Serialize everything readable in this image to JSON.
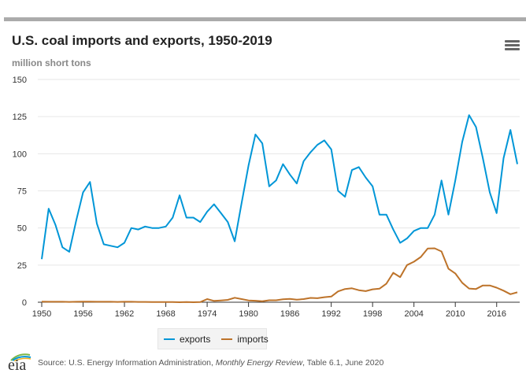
{
  "header": {
    "title": "U.S. coal imports and exports, 1950-2019",
    "subtitle": "million short tons",
    "menu_icon": "hamburger-menu-icon"
  },
  "footer": {
    "logo_text": "eia",
    "source_prefix": "Source: U.S. Energy Information Administration, ",
    "source_italic": "Monthly Energy Review",
    "source_suffix": ", Table 6.1, June 2020"
  },
  "colors": {
    "exports": "#0096d7",
    "imports": "#bd732a",
    "grid": "#e6e6e6",
    "axis": "#333333"
  },
  "chart_data": {
    "type": "line",
    "title": "U.S. coal imports and exports, 1950-2019",
    "ylabel": "million short tons",
    "xlabel": "",
    "ylim": [
      0,
      150
    ],
    "xlim": [
      1950,
      2019
    ],
    "yticks": [
      "0",
      "25",
      "50",
      "75",
      "100",
      "125",
      "150"
    ],
    "xticks": [
      "1950",
      "1956",
      "1962",
      "1968",
      "1974",
      "1980",
      "1986",
      "1992",
      "1998",
      "2004",
      "2010",
      "2016"
    ],
    "grid": true,
    "legend": {
      "position": "bottom-center",
      "entries": [
        "exports",
        "imports"
      ]
    },
    "x": [
      1950,
      1951,
      1952,
      1953,
      1954,
      1955,
      1956,
      1957,
      1958,
      1959,
      1960,
      1961,
      1962,
      1963,
      1964,
      1965,
      1966,
      1967,
      1968,
      1969,
      1970,
      1971,
      1972,
      1973,
      1974,
      1975,
      1976,
      1977,
      1978,
      1979,
      1980,
      1981,
      1982,
      1983,
      1984,
      1985,
      1986,
      1987,
      1988,
      1989,
      1990,
      1991,
      1992,
      1993,
      1994,
      1995,
      1996,
      1997,
      1998,
      1999,
      2000,
      2001,
      2002,
      2003,
      2004,
      2005,
      2006,
      2007,
      2008,
      2009,
      2010,
      2011,
      2012,
      2013,
      2014,
      2015,
      2016,
      2017,
      2018,
      2019
    ],
    "series": [
      {
        "name": "exports",
        "values": [
          29,
          63,
          52,
          37,
          34,
          55,
          74,
          81,
          53,
          39,
          38,
          37,
          40,
          50,
          49,
          51,
          50,
          50,
          51,
          57,
          72,
          57,
          57,
          54,
          61,
          66,
          60,
          54,
          41,
          67,
          92,
          113,
          107,
          78,
          82,
          93,
          86,
          80,
          95,
          101,
          106,
          109,
          103,
          75,
          71,
          89,
          91,
          84,
          78,
          59,
          59,
          49,
          40,
          43,
          48,
          50,
          50,
          59,
          82,
          59,
          82,
          108,
          126,
          118,
          97,
          74,
          60,
          97,
          116,
          93
        ]
      },
      {
        "name": "imports",
        "values": [
          0.4,
          0.3,
          0.3,
          0.3,
          0.2,
          0.3,
          0.4,
          0.4,
          0.3,
          0.3,
          0.3,
          0.2,
          0.3,
          0.3,
          0.2,
          0.2,
          0.1,
          0.1,
          0.1,
          0.1,
          0,
          0.1,
          0,
          0.1,
          2.1,
          0.9,
          1.2,
          1.6,
          3.0,
          2.1,
          1.2,
          1.0,
          0.7,
          1.3,
          1.3,
          2.0,
          2.2,
          1.7,
          2.1,
          2.9,
          2.7,
          3.4,
          3.8,
          7.3,
          8.9,
          9.4,
          8.1,
          7.5,
          8.7,
          9.1,
          12.5,
          19.8,
          16.9,
          25.0,
          27.3,
          30.5,
          36.2,
          36.3,
          34.2,
          22.6,
          19.4,
          13.1,
          9.2,
          8.9,
          11.3,
          11.3,
          9.8,
          7.8,
          5.4,
          6.7
        ]
      }
    ]
  }
}
